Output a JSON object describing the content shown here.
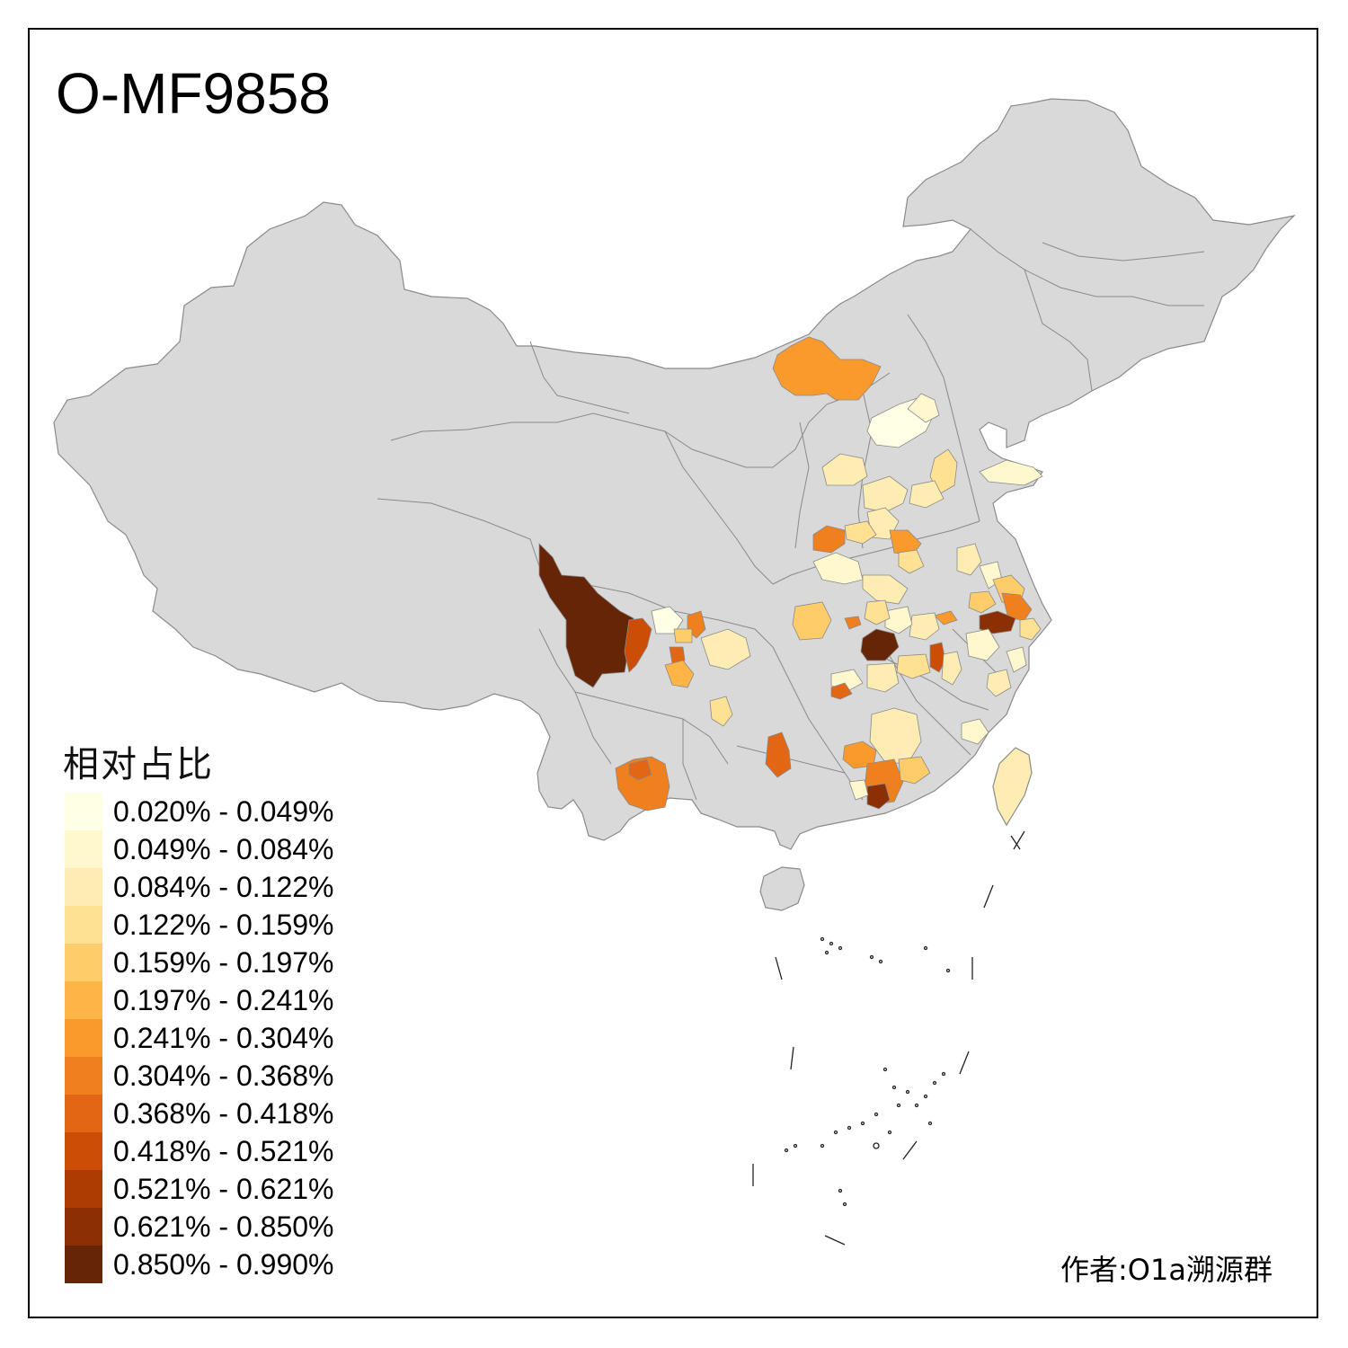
{
  "title": "O-MF9858",
  "legend": {
    "title": "相对占比",
    "bins": [
      {
        "label": "0.020% - 0.049%",
        "color": "#FFFFE5"
      },
      {
        "label": "0.049% - 0.084%",
        "color": "#FFF7CE"
      },
      {
        "label": "0.084% - 0.122%",
        "color": "#FEEDB2"
      },
      {
        "label": "0.122% - 0.159%",
        "color": "#FEE193"
      },
      {
        "label": "0.159% - 0.197%",
        "color": "#FECD6A"
      },
      {
        "label": "0.197% - 0.241%",
        "color": "#FEB545"
      },
      {
        "label": "0.241% - 0.304%",
        "color": "#FB9A2C"
      },
      {
        "label": "0.304% - 0.368%",
        "color": "#F07F1E"
      },
      {
        "label": "0.368% - 0.418%",
        "color": "#E26613"
      },
      {
        "label": "0.418% - 0.521%",
        "color": "#CC4E06"
      },
      {
        "label": "0.521% - 0.621%",
        "color": "#AD3C03"
      },
      {
        "label": "0.621% - 0.850%",
        "color": "#8B2F05"
      },
      {
        "label": "0.850% - 0.990%",
        "color": "#662506"
      }
    ]
  },
  "author": "作者:O1a溯源群",
  "colors": {
    "land": "#D9D9D9",
    "border": "#888888",
    "frame": "#000000",
    "no_data": "#D9D9D9"
  }
}
